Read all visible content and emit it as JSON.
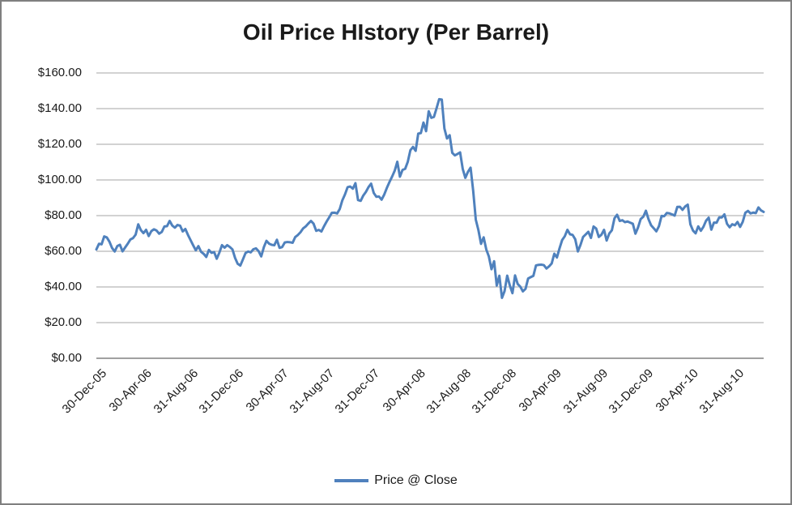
{
  "chart_data": {
    "type": "line",
    "title": "Oil Price HIstory (Per Barrel)",
    "xlabel": "",
    "ylabel": "",
    "grid": "horizontal-only",
    "legend_position": "bottom-center",
    "ylim": [
      0,
      160
    ],
    "x_start": "30-Dec-05",
    "x_interval_days": 7,
    "x_span_days": 1785,
    "y_ticks": [
      {
        "label": "$0.00",
        "value": 0
      },
      {
        "label": "$20.00",
        "value": 20
      },
      {
        "label": "$40.00",
        "value": 40
      },
      {
        "label": "$60.00",
        "value": 60
      },
      {
        "label": "$80.00",
        "value": 80
      },
      {
        "label": "$100.00",
        "value": 100
      },
      {
        "label": "$120.00",
        "value": 120
      },
      {
        "label": "$140.00",
        "value": 140
      },
      {
        "label": "$160.00",
        "value": 160
      }
    ],
    "x_ticks": [
      {
        "label": "30-Dec-05",
        "day": 0
      },
      {
        "label": "30-Apr-06",
        "day": 121
      },
      {
        "label": "31-Aug-06",
        "day": 244
      },
      {
        "label": "31-Dec-06",
        "day": 366
      },
      {
        "label": "30-Apr-07",
        "day": 486
      },
      {
        "label": "31-Aug-07",
        "day": 609
      },
      {
        "label": "31-Dec-07",
        "day": 731
      },
      {
        "label": "30-Apr-08",
        "day": 852
      },
      {
        "label": "31-Aug-08",
        "day": 975
      },
      {
        "label": "31-Dec-08",
        "day": 1097
      },
      {
        "label": "30-Apr-09",
        "day": 1217
      },
      {
        "label": "31-Aug-09",
        "day": 1340
      },
      {
        "label": "31-Dec-09",
        "day": 1462
      },
      {
        "label": "30-Apr-10",
        "day": 1582
      },
      {
        "label": "31-Aug-10",
        "day": 1705
      }
    ],
    "series": [
      {
        "name": "Price @ Close",
        "color": "#4F81BD",
        "values": [
          61.04,
          64.21,
          63.92,
          68.35,
          67.76,
          65.37,
          61.84,
          59.88,
          62.91,
          63.67,
          59.96,
          62.16,
          64.26,
          66.63,
          67.39,
          69.32,
          75.12,
          71.88,
          70.19,
          72.04,
          68.53,
          71.29,
          72.33,
          71.63,
          69.88,
          70.87,
          73.93,
          74.09,
          77.03,
          74.43,
          73.24,
          74.76,
          74.35,
          71.14,
          72.51,
          69.19,
          66.25,
          63.33,
          60.55,
          62.91,
          59.76,
          58.57,
          56.82,
          60.75,
          59.14,
          59.59,
          55.81,
          59.24,
          63.43,
          62.03,
          63.43,
          62.41,
          61.05,
          56.31,
          52.99,
          51.99,
          55.42,
          59.02,
          59.89,
          59.39,
          61.14,
          61.64,
          60.05,
          57.11,
          62.28,
          65.87,
          64.28,
          63.63,
          63.38,
          66.46,
          61.93,
          62.37,
          64.94,
          65.2,
          65.08,
          64.76,
          68.0,
          69.14,
          70.68,
          72.81,
          73.93,
          75.57,
          77.02,
          75.48,
          71.47,
          71.98,
          71.09,
          74.04,
          76.7,
          79.1,
          81.62,
          81.66,
          81.22,
          83.69,
          88.6,
          91.86,
          95.93,
          96.32,
          95.1,
          98.18,
          88.71,
          88.28,
          91.27,
          93.31,
          96.0,
          97.91,
          92.69,
          90.57,
          90.71,
          88.96,
          91.77,
          95.5,
          98.81,
          101.84,
          105.15,
          110.21,
          101.84,
          105.62,
          106.23,
          110.14,
          116.69,
          118.52,
          116.32,
          125.96,
          126.29,
          132.19,
          127.35,
          138.54,
          134.86,
          135.36,
          140.21,
          145.29,
          145.08,
          128.88,
          123.26,
          125.1,
          115.2,
          113.77,
          114.59,
          115.46,
          106.23,
          101.18,
          104.55,
          106.89,
          93.88,
          77.7,
          71.85,
          64.15,
          67.81,
          61.04,
          57.04,
          49.93,
          54.43,
          40.81,
          46.28,
          33.87,
          37.71,
          46.34,
          40.83,
          36.51,
          46.47,
          41.68,
          40.17,
          37.51,
          38.94,
          44.76,
          45.52,
          46.25,
          52.07,
          52.38,
          52.51,
          52.24,
          50.33,
          51.55,
          53.2,
          58.63,
          56.54,
          61.67,
          66.31,
          68.44,
          72.04,
          69.55,
          69.16,
          66.73,
          59.89,
          63.56,
          68.05,
          69.45,
          70.93,
          67.51,
          73.89,
          72.74,
          68.02,
          69.29,
          72.04,
          66.02,
          69.95,
          71.77,
          78.53,
          80.5,
          77.0,
          77.43,
          76.35,
          76.72,
          76.05,
          75.47,
          69.87,
          73.36,
          78.05,
          79.36,
          82.75,
          78.0,
          74.54,
          72.89,
          71.19,
          74.13,
          79.81,
          79.66,
          81.5,
          81.24,
          80.68,
          80.0,
          84.87,
          84.92,
          83.24,
          85.12,
          86.15,
          75.11,
          71.61,
          70.04,
          73.97,
          71.51,
          73.78,
          77.18,
          78.86,
          72.14,
          76.09,
          76.01,
          78.98,
          78.95,
          80.7,
          75.39,
          73.46,
          75.17,
          74.6,
          76.45,
          73.66,
          76.49,
          81.58,
          82.66,
          81.25,
          81.69,
          81.43,
          84.6,
          82.9,
          82.1
        ]
      }
    ],
    "colors": {
      "line": "#4F81BD",
      "gridline": "#A6A6A6",
      "axis_line": "#808080",
      "text": "#1A1A1A",
      "frame_border": "#7F7F7F",
      "background": "#FFFFFF"
    }
  }
}
